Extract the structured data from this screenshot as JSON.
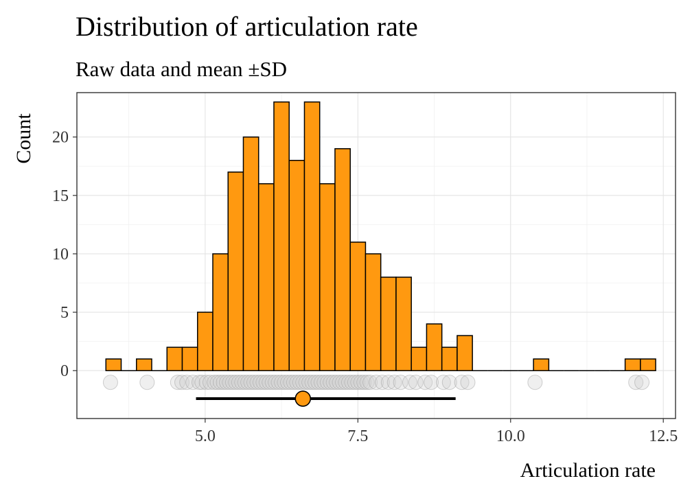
{
  "chart_data": {
    "type": "bar",
    "title": "Distribution of articulation rate",
    "subtitle": "Raw data and mean ±SD",
    "xlabel": "Articulation rate",
    "ylabel": "Count",
    "xlim": [
      2.9,
      12.7
    ],
    "ylim": [
      -4.1,
      23.8
    ],
    "x_ticks": [
      5.0,
      7.5,
      10.0,
      12.5
    ],
    "x_tick_labels": [
      "5.0",
      "7.5",
      "10.0",
      "12.5"
    ],
    "y_ticks": [
      0,
      5,
      10,
      15,
      20
    ],
    "y_tick_labels": [
      "0",
      "5",
      "10",
      "15",
      "20"
    ],
    "grid": true,
    "bar_color": "#FF9910",
    "bar_outline": "#000000",
    "bin_width": 0.25,
    "bin_centers": [
      3.5,
      3.75,
      4.0,
      4.25,
      4.5,
      4.75,
      5.0,
      5.25,
      5.5,
      5.75,
      6.0,
      6.25,
      6.5,
      6.75,
      7.0,
      7.25,
      7.5,
      7.75,
      8.0,
      8.25,
      8.5,
      8.75,
      9.0,
      9.25,
      9.5,
      9.75,
      10.0,
      10.25,
      10.5,
      10.75,
      11.0,
      11.25,
      11.5,
      11.75,
      12.0,
      12.25
    ],
    "counts": [
      1,
      0,
      1,
      0,
      2,
      2,
      5,
      10,
      17,
      20,
      16,
      23,
      18,
      23,
      16,
      19,
      11,
      10,
      8,
      8,
      2,
      4,
      2,
      3,
      0,
      0,
      0,
      0,
      1,
      0,
      0,
      0,
      0,
      0,
      1,
      1
    ],
    "raw_points_y": -1,
    "raw_points": [
      3.45,
      4.05,
      4.55,
      4.62,
      4.7,
      4.8,
      4.9,
      4.95,
      5.02,
      5.08,
      5.15,
      5.2,
      5.25,
      5.3,
      5.35,
      5.4,
      5.45,
      5.5,
      5.55,
      5.6,
      5.65,
      5.7,
      5.75,
      5.8,
      5.85,
      5.9,
      5.95,
      6.0,
      6.05,
      6.1,
      6.15,
      6.2,
      6.25,
      6.3,
      6.35,
      6.4,
      6.45,
      6.5,
      6.55,
      6.6,
      6.65,
      6.7,
      6.75,
      6.8,
      6.85,
      6.9,
      6.95,
      7.0,
      7.05,
      7.1,
      7.15,
      7.2,
      7.25,
      7.3,
      7.35,
      7.4,
      7.45,
      7.5,
      7.55,
      7.6,
      7.65,
      7.7,
      7.8,
      7.9,
      8.0,
      8.1,
      8.2,
      8.35,
      8.45,
      8.6,
      8.7,
      8.9,
      9.0,
      9.2,
      9.3,
      10.4,
      12.05,
      12.15
    ],
    "raw_point_color": "#D0D0D0",
    "mean": 6.6,
    "sd_low": 4.85,
    "sd_high": 9.1,
    "mean_y": -2.4
  }
}
